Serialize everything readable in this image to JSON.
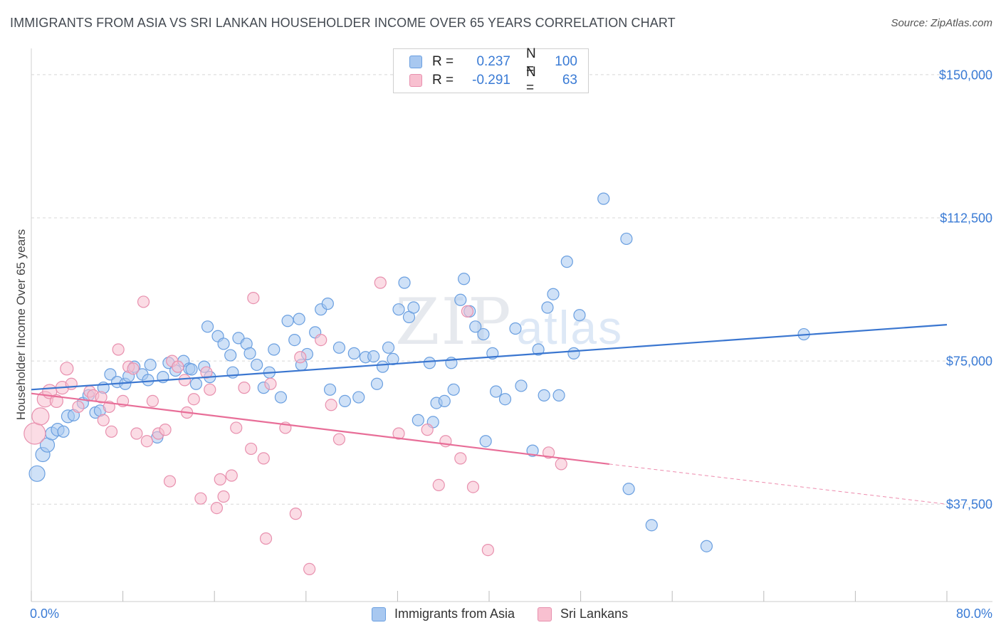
{
  "title": "IMMIGRANTS FROM ASIA VS SRI LANKAN HOUSEHOLDER INCOME OVER 65 YEARS CORRELATION CHART",
  "source": "Source: ZipAtlas.com",
  "watermark": {
    "zip": "ZIP",
    "atlas": "atlas"
  },
  "legend": {
    "rows": [
      {
        "r_label": "R =",
        "r_value": "0.237",
        "n_label": "N =",
        "n_value": "100",
        "color": "#a8c8f0",
        "border": "#6a9fe0"
      },
      {
        "r_label": "R =",
        "r_value": "-0.291",
        "n_label": "N =",
        "n_value": "63",
        "color": "#f8c0d0",
        "border": "#e890ae"
      }
    ]
  },
  "bottom_legend": [
    {
      "label": "Immigrants from Asia",
      "color": "#a8c8f0",
      "border": "#6a9fe0"
    },
    {
      "label": "Sri Lankans",
      "color": "#f8c0d0",
      "border": "#e890ae"
    }
  ],
  "chart_data": {
    "type": "scatter",
    "title": "IMMIGRANTS FROM ASIA VS SRI LANKAN HOUSEHOLDER INCOME OVER 65 YEARS CORRELATION CHART",
    "xlabel": "",
    "ylabel": "Householder Income Over 65 years",
    "xlim": [
      0,
      80
    ],
    "ylim": [
      12000,
      155000
    ],
    "x_tick_labels": [
      "0.0%",
      "80.0%"
    ],
    "y_ticks": [
      37500,
      75000,
      112500,
      150000
    ],
    "y_tick_labels": [
      "$37,500",
      "$75,000",
      "$112,500",
      "$150,000"
    ],
    "grid": true,
    "series": [
      {
        "name": "Immigrants from Asia",
        "color": "#6a9fe0",
        "fill": "#a8c8f0",
        "trend": {
          "x": [
            0,
            80
          ],
          "y": [
            67500,
            84500
          ],
          "color": "#3a76d0"
        },
        "points": [
          [
            0.5,
            45500,
            11
          ],
          [
            1,
            50500,
            10
          ],
          [
            1.4,
            53000,
            10
          ],
          [
            1.8,
            56000,
            9
          ],
          [
            2.3,
            57000,
            9
          ],
          [
            3.2,
            60500,
            9
          ],
          [
            3.7,
            60800,
            8
          ],
          [
            4.5,
            64000,
            8
          ],
          [
            5,
            66000,
            8
          ],
          [
            5.6,
            61500,
            8
          ],
          [
            6.3,
            68000,
            8
          ],
          [
            6.9,
            71500,
            8
          ],
          [
            7.5,
            69500,
            8
          ],
          [
            8.2,
            69000,
            8
          ],
          [
            8.5,
            71000,
            8
          ],
          [
            9,
            73500,
            8
          ],
          [
            9.7,
            71500,
            8
          ],
          [
            10.2,
            70000,
            8
          ],
          [
            10.4,
            74000,
            8
          ],
          [
            11,
            55000,
            8
          ],
          [
            11.5,
            70800,
            8
          ],
          [
            12,
            74500,
            8
          ],
          [
            12.6,
            72500,
            8
          ],
          [
            13.3,
            75000,
            8
          ],
          [
            13.8,
            73000,
            8
          ],
          [
            14,
            72800,
            8
          ],
          [
            14.4,
            69000,
            8
          ],
          [
            15.1,
            73500,
            8
          ],
          [
            15.4,
            84000,
            8
          ],
          [
            15.6,
            70800,
            8
          ],
          [
            16.3,
            81500,
            8
          ],
          [
            16.8,
            79500,
            8
          ],
          [
            17.4,
            76500,
            8
          ],
          [
            17.6,
            72000,
            8
          ],
          [
            18.1,
            81000,
            8
          ],
          [
            18.8,
            79500,
            8
          ],
          [
            19.1,
            77000,
            8
          ],
          [
            19.7,
            74000,
            8
          ],
          [
            20.3,
            68000,
            8
          ],
          [
            20.8,
            72000,
            8
          ],
          [
            21.2,
            78000,
            8
          ],
          [
            21.8,
            65500,
            8
          ],
          [
            22.4,
            85500,
            8
          ],
          [
            23,
            80500,
            8
          ],
          [
            23.4,
            86000,
            8
          ],
          [
            23.6,
            74000,
            8
          ],
          [
            24.1,
            76800,
            8
          ],
          [
            24.8,
            82500,
            8
          ],
          [
            25.3,
            88500,
            8
          ],
          [
            25.9,
            90000,
            8
          ],
          [
            26.1,
            67500,
            8
          ],
          [
            26.9,
            78500,
            8
          ],
          [
            27.4,
            64500,
            8
          ],
          [
            28.2,
            77000,
            8
          ],
          [
            28.6,
            65500,
            8
          ],
          [
            29.2,
            76000,
            8
          ],
          [
            29.9,
            76200,
            8
          ],
          [
            30.2,
            69000,
            8
          ],
          [
            30.7,
            73500,
            8
          ],
          [
            31.2,
            78500,
            8
          ],
          [
            31.6,
            75500,
            8
          ],
          [
            32.1,
            88500,
            8
          ],
          [
            32.6,
            95500,
            8
          ],
          [
            33,
            86500,
            8
          ],
          [
            33.4,
            89000,
            8
          ],
          [
            33.8,
            59500,
            8
          ],
          [
            34.8,
            74500,
            8
          ],
          [
            35.1,
            59000,
            8
          ],
          [
            35.4,
            64000,
            8
          ],
          [
            36.1,
            64500,
            8
          ],
          [
            36.7,
            74500,
            8
          ],
          [
            36.9,
            67500,
            8
          ],
          [
            37.5,
            91000,
            8
          ],
          [
            37.8,
            96500,
            8
          ],
          [
            38.3,
            88000,
            8
          ],
          [
            38.8,
            84000,
            8
          ],
          [
            39.5,
            82000,
            8
          ],
          [
            39.7,
            54000,
            8
          ],
          [
            40.3,
            77000,
            8
          ],
          [
            40.6,
            67000,
            8
          ],
          [
            41.4,
            65000,
            8
          ],
          [
            42.3,
            83500,
            8
          ],
          [
            42.8,
            68500,
            8
          ],
          [
            43.8,
            51500,
            8
          ],
          [
            44.3,
            78000,
            8
          ],
          [
            44.8,
            66000,
            8
          ],
          [
            45.1,
            89000,
            8
          ],
          [
            45.6,
            92500,
            8
          ],
          [
            46.1,
            66000,
            8
          ],
          [
            46.8,
            101000,
            8
          ],
          [
            47.4,
            77000,
            8
          ],
          [
            47.9,
            87000,
            8
          ],
          [
            50,
            117500,
            8
          ],
          [
            52,
            107000,
            8
          ],
          [
            52.2,
            41500,
            8
          ],
          [
            54.2,
            32000,
            8
          ],
          [
            59,
            26500,
            8
          ],
          [
            67.5,
            82000,
            8
          ],
          [
            6,
            62000,
            8
          ],
          [
            2.8,
            56500,
            8
          ]
        ]
      },
      {
        "name": "Sri Lankans",
        "color": "#e890ae",
        "fill": "#f8c0d0",
        "trend": {
          "x": [
            0,
            50.5
          ],
          "y": [
            66500,
            48000
          ],
          "color": "#e86e98"
        },
        "trend_dashed": {
          "x": [
            50.5,
            80
          ],
          "y": [
            48000,
            37500
          ]
        },
        "points": [
          [
            0.3,
            56000,
            15
          ],
          [
            0.8,
            60500,
            12
          ],
          [
            1.2,
            65000,
            11
          ],
          [
            1.6,
            67000,
            10
          ],
          [
            2.2,
            64500,
            9
          ],
          [
            2.7,
            68000,
            9
          ],
          [
            3.1,
            73000,
            9
          ],
          [
            3.5,
            69000,
            8
          ],
          [
            4.1,
            63000,
            8
          ],
          [
            5.1,
            67000,
            8
          ],
          [
            5.4,
            66000,
            8
          ],
          [
            6.1,
            65500,
            8
          ],
          [
            6.3,
            59500,
            8
          ],
          [
            6.8,
            63000,
            8
          ],
          [
            7,
            56500,
            8
          ],
          [
            7.6,
            78000,
            8
          ],
          [
            8,
            64500,
            8
          ],
          [
            8.5,
            73500,
            8
          ],
          [
            8.9,
            73000,
            8
          ],
          [
            9.2,
            56000,
            8
          ],
          [
            9.8,
            90500,
            8
          ],
          [
            10.1,
            54000,
            8
          ],
          [
            10.6,
            64500,
            8
          ],
          [
            11.1,
            56000,
            8
          ],
          [
            11.7,
            57000,
            8
          ],
          [
            12.1,
            43500,
            8
          ],
          [
            12.3,
            75000,
            8
          ],
          [
            12.8,
            73500,
            8
          ],
          [
            13.4,
            70000,
            8
          ],
          [
            13.6,
            61500,
            8
          ],
          [
            14.2,
            65000,
            8
          ],
          [
            14.8,
            39000,
            8
          ],
          [
            15.3,
            72000,
            8
          ],
          [
            15.6,
            67500,
            8
          ],
          [
            16.2,
            36500,
            8
          ],
          [
            16.8,
            39500,
            8
          ],
          [
            17.5,
            45000,
            8
          ],
          [
            17.9,
            57500,
            8
          ],
          [
            18.6,
            68000,
            8
          ],
          [
            19.2,
            52000,
            8
          ],
          [
            19.4,
            91500,
            8
          ],
          [
            20.3,
            49500,
            8
          ],
          [
            20.9,
            69000,
            8
          ],
          [
            22.2,
            57500,
            8
          ],
          [
            23.1,
            35000,
            8
          ],
          [
            23.5,
            76000,
            8
          ],
          [
            24.3,
            20500,
            8
          ],
          [
            25.3,
            80500,
            8
          ],
          [
            26.2,
            63500,
            8
          ],
          [
            26.9,
            54500,
            8
          ],
          [
            30.5,
            95500,
            8
          ],
          [
            32.1,
            56000,
            8
          ],
          [
            34.6,
            57000,
            8
          ],
          [
            35.6,
            42500,
            8
          ],
          [
            36.2,
            54000,
            8
          ],
          [
            37.5,
            49500,
            8
          ],
          [
            38.1,
            88000,
            8
          ],
          [
            38.6,
            42000,
            8
          ],
          [
            39.9,
            25500,
            8
          ],
          [
            45.2,
            51000,
            8
          ],
          [
            46.3,
            48000,
            8
          ],
          [
            20.5,
            28500,
            8
          ],
          [
            16.5,
            44000,
            8
          ]
        ]
      }
    ]
  }
}
